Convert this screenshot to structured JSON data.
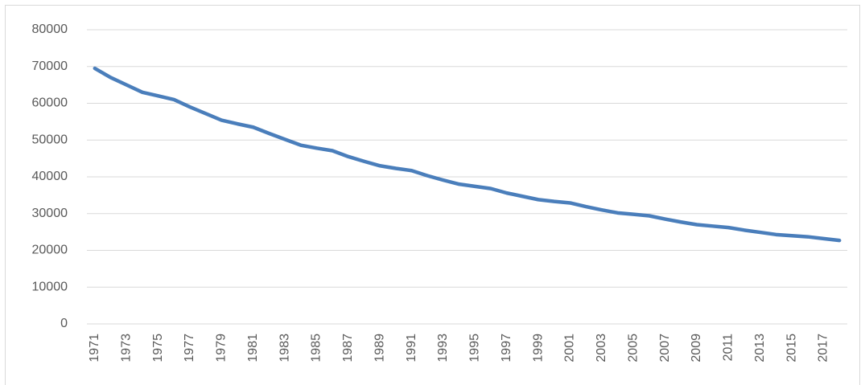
{
  "chart_data": {
    "type": "line",
    "categories": [
      "1971",
      null,
      "1973",
      null,
      "1975",
      null,
      "1977",
      null,
      "1979",
      null,
      "1981",
      null,
      "1983",
      null,
      "1985",
      null,
      "1987",
      null,
      "1989",
      null,
      "1991",
      null,
      "1993",
      null,
      "1995",
      null,
      "1997",
      null,
      "1999",
      null,
      "2001",
      null,
      "2003",
      null,
      "2005",
      null,
      "2007",
      null,
      "2009",
      null,
      "2011",
      null,
      "2013",
      null,
      "2015",
      null,
      "2017",
      null
    ],
    "values": [
      69500,
      67000,
      65000,
      63000,
      62000,
      61000,
      59000,
      57200,
      55400,
      54400,
      53500,
      51800,
      50200,
      48600,
      47800,
      47100,
      45500,
      44200,
      43000,
      42300,
      41700,
      40300,
      39100,
      38000,
      37400,
      36800,
      35600,
      34700,
      33800,
      33300,
      32900,
      31900,
      31000,
      30200,
      29800,
      29400,
      28500,
      27700,
      27000,
      26600,
      26200,
      25500,
      24900,
      24300,
      24000,
      23700,
      23200,
      22700
    ],
    "color": "#4a7ebb",
    "ylim": [
      0,
      80000
    ],
    "yticks": [
      0,
      10000,
      20000,
      30000,
      40000,
      50000,
      60000,
      70000,
      80000
    ],
    "grid": true
  }
}
